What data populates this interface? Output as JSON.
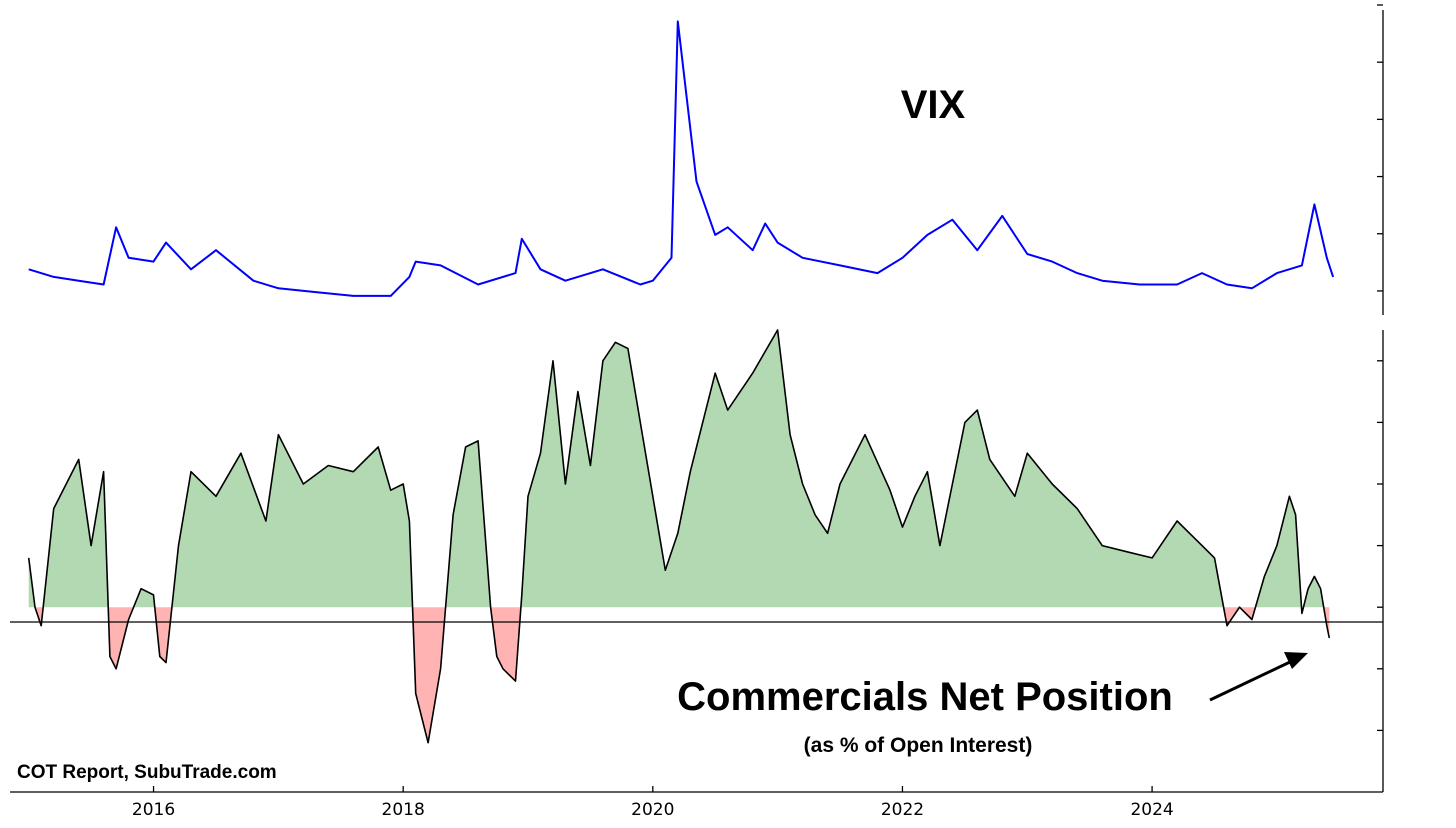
{
  "chart_data": [
    {
      "type": "line",
      "title": "VIX",
      "color": "#0000ff",
      "x_unit": "year",
      "xlim": [
        2014.85,
        2025.85
      ],
      "ylim": [
        5,
        85
      ],
      "y_ticks_labeled": false,
      "series": [
        {
          "x": [
            2015.0,
            2015.2,
            2015.4,
            2015.6,
            2015.7,
            2015.8,
            2016.0,
            2016.1,
            2016.3,
            2016.5,
            2016.8,
            2017.0,
            2017.3,
            2017.6,
            2017.9,
            2018.05,
            2018.1,
            2018.3,
            2018.6,
            2018.9,
            2018.95,
            2019.1,
            2019.3,
            2019.6,
            2019.9,
            2020.0,
            2020.15,
            2020.2,
            2020.35,
            2020.5,
            2020.6,
            2020.8,
            2020.9,
            2021.0,
            2021.2,
            2021.5,
            2021.8,
            2022.0,
            2022.2,
            2022.4,
            2022.6,
            2022.8,
            2023.0,
            2023.2,
            2023.4,
            2023.6,
            2023.9,
            2024.0,
            2024.2,
            2024.4,
            2024.6,
            2024.8,
            2025.0,
            2025.2,
            2025.3,
            2025.4,
            2025.45
          ],
          "y": [
            17,
            15,
            14,
            13,
            28,
            20,
            19,
            24,
            17,
            22,
            14,
            12,
            11,
            10,
            10,
            15,
            19,
            18,
            13,
            16,
            25,
            17,
            14,
            17,
            13,
            14,
            20,
            82,
            40,
            26,
            28,
            22,
            29,
            24,
            20,
            18,
            16,
            20,
            26,
            30,
            22,
            31,
            21,
            19,
            16,
            14,
            13,
            13,
            13,
            16,
            13,
            12,
            16,
            18,
            34,
            20,
            15
          ]
        }
      ]
    },
    {
      "type": "area",
      "title": "Commercials Net Position",
      "subtitle": "(as % of Open Interest)",
      "annotation": "Commercials Net Position",
      "positive_color": "#b3d9b3",
      "negative_color": "#ffb3b3",
      "line_color": "#000000",
      "x_unit": "year",
      "xlim": [
        2014.85,
        2025.85
      ],
      "ylim": [
        -30,
        45
      ],
      "x_ticks": [
        "2016",
        "2018",
        "2020",
        "2022",
        "2024"
      ],
      "y_ticks_labeled": false,
      "series": [
        {
          "x": [
            2015.0,
            2015.05,
            2015.1,
            2015.2,
            2015.3,
            2015.4,
            2015.5,
            2015.6,
            2015.65,
            2015.7,
            2015.8,
            2015.9,
            2016.0,
            2016.05,
            2016.1,
            2016.2,
            2016.3,
            2016.5,
            2016.7,
            2016.9,
            2017.0,
            2017.2,
            2017.4,
            2017.6,
            2017.8,
            2017.9,
            2018.0,
            2018.05,
            2018.1,
            2018.2,
            2018.3,
            2018.4,
            2018.5,
            2018.6,
            2018.7,
            2018.75,
            2018.8,
            2018.9,
            2018.95,
            2019.0,
            2019.1,
            2019.2,
            2019.3,
            2019.4,
            2019.5,
            2019.6,
            2019.7,
            2019.8,
            2019.9,
            2020.0,
            2020.1,
            2020.2,
            2020.3,
            2020.4,
            2020.5,
            2020.6,
            2020.8,
            2021.0,
            2021.1,
            2021.2,
            2021.3,
            2021.4,
            2021.5,
            2021.7,
            2021.9,
            2022.0,
            2022.1,
            2022.2,
            2022.3,
            2022.5,
            2022.6,
            2022.7,
            2022.9,
            2023.0,
            2023.2,
            2023.4,
            2023.6,
            2023.8,
            2024.0,
            2024.2,
            2024.4,
            2024.5,
            2024.6,
            2024.7,
            2024.8,
            2024.9,
            2025.0,
            2025.1,
            2025.15,
            2025.2,
            2025.25,
            2025.3,
            2025.35,
            2025.4,
            2025.42
          ],
          "y": [
            8,
            0,
            -3,
            16,
            20,
            24,
            10,
            22,
            -8,
            -10,
            -2,
            3,
            2,
            -8,
            -9,
            10,
            22,
            18,
            25,
            14,
            28,
            20,
            23,
            22,
            26,
            19,
            20,
            14,
            -14,
            -22,
            -10,
            15,
            26,
            27,
            0,
            -8,
            -10,
            -12,
            2,
            18,
            25,
            40,
            20,
            35,
            23,
            40,
            43,
            42,
            30,
            18,
            6,
            12,
            22,
            30,
            38,
            32,
            38,
            45,
            28,
            20,
            15,
            12,
            20,
            28,
            19,
            13,
            18,
            22,
            10,
            30,
            32,
            24,
            18,
            25,
            20,
            16,
            10,
            9,
            8,
            14,
            10,
            8,
            -3,
            0,
            -2,
            5,
            10,
            18,
            15,
            -1,
            3,
            5,
            3,
            -3,
            -5
          ]
        }
      ]
    }
  ],
  "credit": "COT Report, SubuTrade.com"
}
